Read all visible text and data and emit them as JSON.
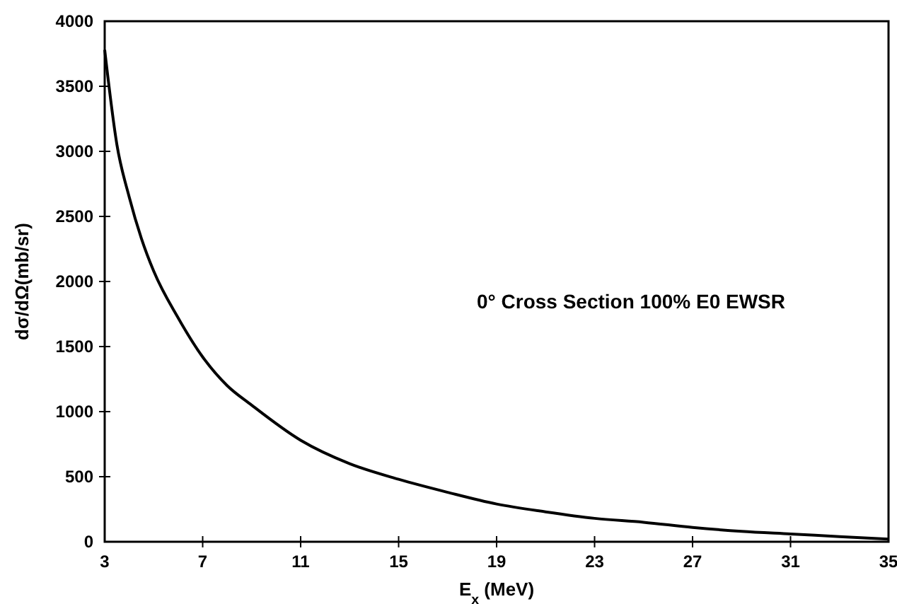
{
  "chart_data": {
    "type": "line",
    "xlabel": "E$_{x}$ (MeV)",
    "ylabel": "dσ/dΩ(mb/sr)",
    "annotations": [
      "0° Cross Section 100% E0 EWSR"
    ],
    "series": [
      {
        "color": "#000000",
        "x": [
          3,
          3.5,
          4,
          4.5,
          5,
          6,
          7,
          8,
          9,
          11,
          13,
          15,
          17,
          19,
          21,
          23,
          25,
          27,
          29,
          31,
          33,
          35
        ],
        "values": [
          3780,
          3050,
          2650,
          2330,
          2080,
          1720,
          1420,
          1200,
          1050,
          780,
          600,
          480,
          380,
          290,
          230,
          180,
          150,
          110,
          80,
          60,
          40,
          20
        ]
      }
    ],
    "xlim": [
      3,
      35
    ],
    "xticks": [
      3,
      7,
      11,
      15,
      19,
      23,
      27,
      31,
      35
    ],
    "ylim": [
      0,
      4000
    ],
    "yticks": [
      0,
      500,
      1000,
      1500,
      2000,
      2500,
      3000,
      3500,
      4000
    ],
    "grid": false,
    "marker": "none",
    "line_style": "solid"
  }
}
